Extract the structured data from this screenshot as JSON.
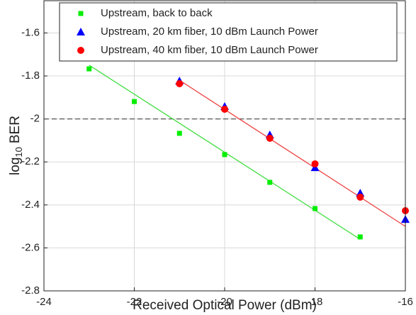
{
  "chart_data": {
    "type": "scatter",
    "xlabel": "Received Optical Power (dBm)",
    "ylabel": [
      "log",
      "10",
      "BER"
    ],
    "xlim": [
      -24,
      -16
    ],
    "ylim": [
      -2.8,
      -1.45
    ],
    "xticks": [
      -24,
      -22,
      -20,
      -18,
      -16
    ],
    "yticks": [
      -2.8,
      -2.6,
      -2.4,
      -2.2,
      -2,
      -1.8,
      -1.6
    ],
    "grid": true,
    "legend": "upper left",
    "reference_line": -2,
    "series": [
      {
        "name": "Upstream, back to back",
        "color": "#00ee00",
        "marker": "square",
        "x": [
          -23,
          -22,
          -21,
          -20,
          -19,
          -18,
          -17
        ],
        "values": [
          -1.767,
          -1.919,
          -2.067,
          -2.166,
          -2.295,
          -2.417,
          -2.549
        ]
      },
      {
        "name": "Upstream, 20 km fiber, 10 dBm Launch Power",
        "color": "#0000ff",
        "marker": "triangle",
        "x": [
          -21,
          -20,
          -19,
          -18,
          -17,
          -16
        ],
        "values": [
          -1.823,
          -1.942,
          -2.074,
          -2.226,
          -2.345,
          -2.467
        ]
      },
      {
        "name": "Upstream, 40 km fiber, 10 dBm Launch Power",
        "color": "#ff0000",
        "marker": "circle",
        "x": [
          -21,
          -20,
          -19,
          -18,
          -17,
          -16
        ],
        "values": [
          -1.836,
          -1.955,
          -2.09,
          -2.209,
          -2.364,
          -2.427
        ]
      }
    ],
    "fits": [
      {
        "color": "#44dd44",
        "x": [
          -23,
          -17
        ],
        "values": [
          -1.75,
          -2.56
        ]
      },
      {
        "color": "#ee4444",
        "x": [
          -21,
          -16
        ],
        "values": [
          -1.82,
          -2.5
        ]
      }
    ]
  }
}
